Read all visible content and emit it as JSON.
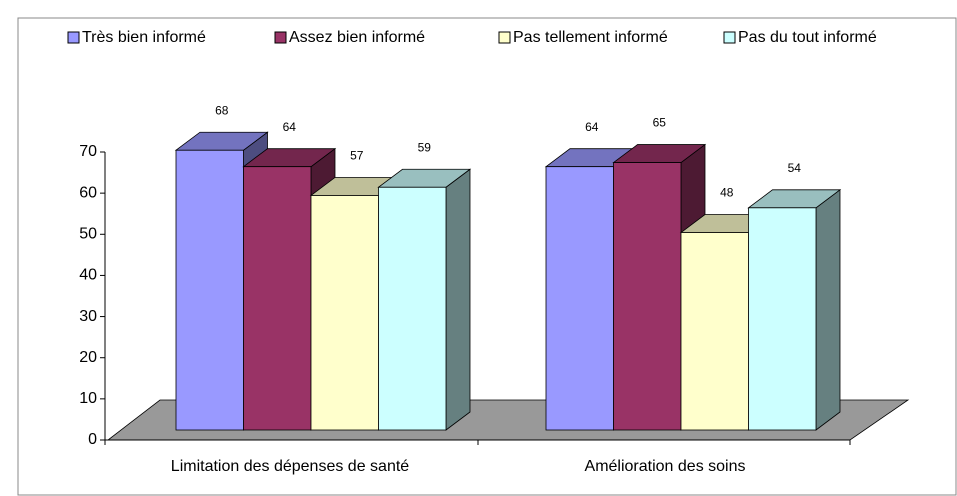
{
  "chart_data": {
    "type": "bar3d",
    "categories": [
      "Limitation des dépenses de santé",
      "Amélioration des soins"
    ],
    "series": [
      {
        "name": "Très bien informé",
        "color": "#9999FF",
        "values": [
          68,
          64
        ]
      },
      {
        "name": "Assez bien informé",
        "color": "#993366",
        "values": [
          64,
          65
        ]
      },
      {
        "name": "Pas tellement informé",
        "color": "#FFFFCC",
        "values": [
          57,
          48
        ]
      },
      {
        "name": "Pas du tout informé",
        "color": "#CCFFFF",
        "values": [
          59,
          54
        ]
      }
    ],
    "ylim": [
      0,
      70
    ],
    "yticks": [
      0,
      10,
      20,
      30,
      40,
      50,
      60,
      70
    ],
    "legend": "top"
  }
}
